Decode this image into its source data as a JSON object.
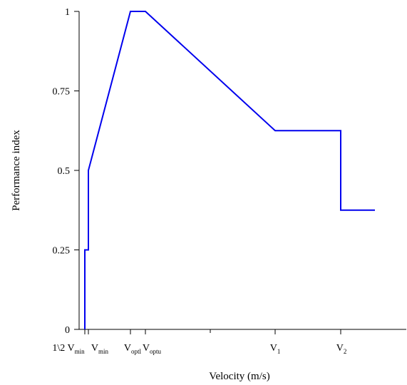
{
  "chart_data": {
    "type": "line",
    "title": "",
    "xlabel": "Velocity (m/s)",
    "ylabel": "Performance index",
    "ylim": [
      0,
      1
    ],
    "y_ticks": [
      {
        "value": 0,
        "label": "0"
      },
      {
        "value": 0.25,
        "label": "0.25"
      },
      {
        "value": 0.5,
        "label": "0.5"
      },
      {
        "value": 0.75,
        "label": "0.75"
      },
      {
        "value": 1,
        "label": "1"
      }
    ],
    "x_ticks": [
      {
        "key": "half_vmin",
        "main": "1\\2 V",
        "sub": "min"
      },
      {
        "key": "vmin",
        "main": "V",
        "sub": "min"
      },
      {
        "key": "vopt_l",
        "main": "V",
        "sub": "optl"
      },
      {
        "key": "vopt_u",
        "main": "V",
        "sub": "optu"
      },
      {
        "key": "v1",
        "main": "V",
        "sub": "1"
      },
      {
        "key": "v2",
        "main": "V",
        "sub": "2"
      }
    ],
    "grid": false,
    "legend": "none",
    "series": [
      {
        "color": "#0000ee",
        "points": [
          {
            "x": "half_vmin",
            "y": 0
          },
          {
            "x": "half_vmin",
            "y": 0.25
          },
          {
            "x": "vmin",
            "y": 0.25
          },
          {
            "x": "vmin",
            "y": 0.5
          },
          {
            "x": "vopt_l",
            "y": 1
          },
          {
            "x": "vopt_u",
            "y": 1
          },
          {
            "x": "v1",
            "y": 0.625
          },
          {
            "x": "v2",
            "y": 0.625
          },
          {
            "x": "v2",
            "y": 0.375
          },
          {
            "x": "v2_end",
            "y": 0.375
          }
        ]
      }
    ]
  }
}
